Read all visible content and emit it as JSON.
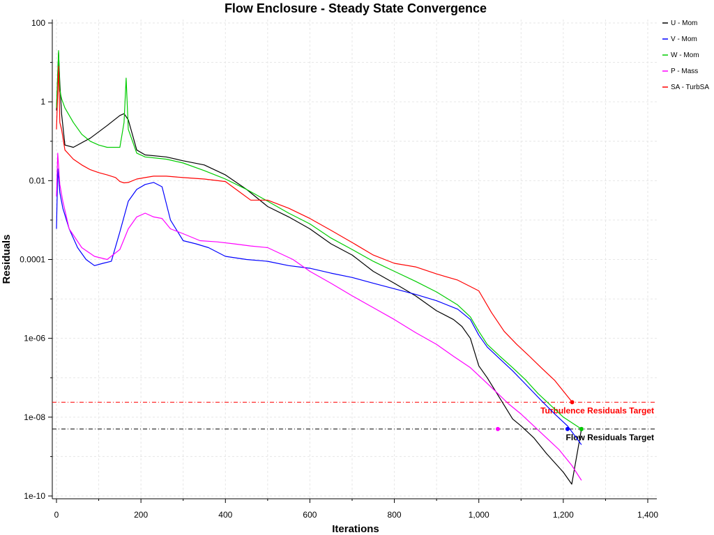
{
  "chart_data": {
    "type": "line",
    "title": "Flow Enclosure - Steady State Convergence",
    "xlabel": "Iterations",
    "ylabel": "Residuals",
    "xlim": [
      0,
      1400
    ],
    "ylim": [
      1e-10,
      100
    ],
    "y_scale": "log",
    "grid": true,
    "legend_position": "top-right",
    "x_ticks": [
      0,
      200,
      400,
      600,
      800,
      1000,
      1200,
      1400
    ],
    "x_tick_labels": [
      "0",
      "200",
      "400",
      "600",
      "800",
      "1,000",
      "1,200",
      "1,400"
    ],
    "y_ticks": [
      100,
      1,
      0.01,
      0.0001,
      1e-06,
      1e-08,
      1e-10
    ],
    "y_tick_labels": [
      "100",
      "1",
      "0.01",
      "0.0001",
      "1e-06",
      "1e-08",
      "1e-10"
    ],
    "series": [
      {
        "name": "U - Mom",
        "color": "#000000",
        "points": [
          [
            0,
            0.6
          ],
          [
            5,
            18
          ],
          [
            8,
            3
          ],
          [
            12,
            0.5
          ],
          [
            20,
            0.08
          ],
          [
            40,
            0.07
          ],
          [
            80,
            0.12
          ],
          [
            120,
            0.25
          ],
          [
            150,
            0.45
          ],
          [
            160,
            0.5
          ],
          [
            170,
            0.35
          ],
          [
            190,
            0.06
          ],
          [
            210,
            0.045
          ],
          [
            260,
            0.04
          ],
          [
            300,
            0.032
          ],
          [
            350,
            0.025
          ],
          [
            400,
            0.014
          ],
          [
            450,
            0.006
          ],
          [
            500,
            0.0022
          ],
          [
            550,
            0.0012
          ],
          [
            600,
            0.0006
          ],
          [
            650,
            0.00025
          ],
          [
            700,
            0.00013
          ],
          [
            750,
            5e-05
          ],
          [
            800,
            2.5e-05
          ],
          [
            850,
            1.2e-05
          ],
          [
            900,
            5e-06
          ],
          [
            940,
            3e-06
          ],
          [
            960,
            2e-06
          ],
          [
            980,
            1e-06
          ],
          [
            1000,
            2e-07
          ],
          [
            1020,
            1e-07
          ],
          [
            1050,
            3e-08
          ],
          [
            1080,
            9e-09
          ],
          [
            1100,
            6e-09
          ],
          [
            1130,
            3e-09
          ],
          [
            1160,
            1.2e-09
          ],
          [
            1200,
            4e-10
          ],
          [
            1220,
            2e-10
          ],
          [
            1243,
            5e-09
          ]
        ]
      },
      {
        "name": "V - Mom",
        "color": "#0000ff",
        "points": [
          [
            0,
            0.0006
          ],
          [
            3,
            0.02
          ],
          [
            8,
            0.005
          ],
          [
            15,
            0.002
          ],
          [
            30,
            0.0006
          ],
          [
            50,
            0.0002
          ],
          [
            70,
            0.0001
          ],
          [
            90,
            7e-05
          ],
          [
            110,
            8e-05
          ],
          [
            130,
            9e-05
          ],
          [
            150,
            0.0005
          ],
          [
            170,
            0.003
          ],
          [
            190,
            0.006
          ],
          [
            210,
            0.008
          ],
          [
            230,
            0.009
          ],
          [
            250,
            0.007
          ],
          [
            270,
            0.001
          ],
          [
            300,
            0.0003
          ],
          [
            330,
            0.00025
          ],
          [
            360,
            0.0002
          ],
          [
            400,
            0.00012
          ],
          [
            450,
            0.0001
          ],
          [
            500,
            9e-05
          ],
          [
            550,
            7e-05
          ],
          [
            600,
            6e-05
          ],
          [
            650,
            4.5e-05
          ],
          [
            700,
            3.5e-05
          ],
          [
            750,
            2.5e-05
          ],
          [
            800,
            1.8e-05
          ],
          [
            850,
            1.3e-05
          ],
          [
            900,
            9e-06
          ],
          [
            950,
            5.5e-06
          ],
          [
            980,
            3e-06
          ],
          [
            1000,
            1.2e-06
          ],
          [
            1020,
            6e-07
          ],
          [
            1050,
            3e-07
          ],
          [
            1080,
            1.5e-07
          ],
          [
            1110,
            7e-08
          ],
          [
            1150,
            2.5e-08
          ],
          [
            1180,
            1.2e-08
          ],
          [
            1210,
            6e-09
          ],
          [
            1243,
            2e-09
          ]
        ]
      },
      {
        "name": "W - Mom",
        "color": "#00cc00",
        "points": [
          [
            0,
            0.7
          ],
          [
            5,
            20
          ],
          [
            8,
            2
          ],
          [
            12,
            1.2
          ],
          [
            20,
            0.7
          ],
          [
            40,
            0.3
          ],
          [
            60,
            0.15
          ],
          [
            80,
            0.1
          ],
          [
            100,
            0.08
          ],
          [
            120,
            0.07
          ],
          [
            150,
            0.07
          ],
          [
            160,
            0.3
          ],
          [
            165,
            4
          ],
          [
            170,
            0.2
          ],
          [
            190,
            0.05
          ],
          [
            210,
            0.04
          ],
          [
            260,
            0.035
          ],
          [
            300,
            0.028
          ],
          [
            350,
            0.018
          ],
          [
            400,
            0.011
          ],
          [
            450,
            0.006
          ],
          [
            500,
            0.003
          ],
          [
            550,
            0.0015
          ],
          [
            600,
            0.0008
          ],
          [
            650,
            0.00035
          ],
          [
            700,
            0.00018
          ],
          [
            750,
            9e-05
          ],
          [
            800,
            5e-05
          ],
          [
            850,
            2.8e-05
          ],
          [
            900,
            1.5e-05
          ],
          [
            950,
            7e-06
          ],
          [
            980,
            3.5e-06
          ],
          [
            1000,
            1.5e-06
          ],
          [
            1020,
            7e-07
          ],
          [
            1050,
            3.5e-07
          ],
          [
            1080,
            1.8e-07
          ],
          [
            1110,
            9e-08
          ],
          [
            1140,
            4e-08
          ],
          [
            1170,
            2e-08
          ],
          [
            1200,
            1e-08
          ],
          [
            1243,
            5e-09
          ]
        ]
      },
      {
        "name": "P - Mass",
        "color": "#ff00ff",
        "points": [
          [
            0,
            0.004
          ],
          [
            3,
            0.05
          ],
          [
            8,
            0.008
          ],
          [
            15,
            0.003
          ],
          [
            30,
            0.0006
          ],
          [
            60,
            0.0002
          ],
          [
            90,
            0.00012
          ],
          [
            120,
            0.0001
          ],
          [
            150,
            0.00018
          ],
          [
            170,
            0.0006
          ],
          [
            190,
            0.0012
          ],
          [
            210,
            0.0015
          ],
          [
            230,
            0.0012
          ],
          [
            250,
            0.0011
          ],
          [
            270,
            0.0006
          ],
          [
            300,
            0.00045
          ],
          [
            340,
            0.0003
          ],
          [
            380,
            0.00028
          ],
          [
            420,
            0.00025
          ],
          [
            460,
            0.00022
          ],
          [
            500,
            0.0002
          ],
          [
            560,
            0.0001
          ],
          [
            600,
            5e-05
          ],
          [
            650,
            2.5e-05
          ],
          [
            700,
            1.2e-05
          ],
          [
            750,
            6e-06
          ],
          [
            800,
            3e-06
          ],
          [
            850,
            1.4e-06
          ],
          [
            900,
            7e-07
          ],
          [
            940,
            3.5e-07
          ],
          [
            980,
            1.8e-07
          ],
          [
            1010,
            9e-08
          ],
          [
            1040,
            4.5e-08
          ],
          [
            1070,
            2.2e-08
          ],
          [
            1100,
            1.2e-08
          ],
          [
            1130,
            6e-09
          ],
          [
            1160,
            3e-09
          ],
          [
            1190,
            1.5e-09
          ],
          [
            1220,
            6e-10
          ],
          [
            1243,
            2.5e-10
          ]
        ]
      },
      {
        "name": "SA - TurbSA",
        "color": "#ff0000",
        "points": [
          [
            0,
            0.2
          ],
          [
            5,
            8
          ],
          [
            8,
            0.3
          ],
          [
            12,
            0.2
          ],
          [
            20,
            0.06
          ],
          [
            40,
            0.035
          ],
          [
            60,
            0.025
          ],
          [
            80,
            0.019
          ],
          [
            100,
            0.016
          ],
          [
            120,
            0.014
          ],
          [
            140,
            0.012
          ],
          [
            150,
            0.0095
          ],
          [
            160,
            0.0088
          ],
          [
            170,
            0.009
          ],
          [
            190,
            0.011
          ],
          [
            210,
            0.012
          ],
          [
            230,
            0.013
          ],
          [
            260,
            0.013
          ],
          [
            300,
            0.012
          ],
          [
            350,
            0.011
          ],
          [
            400,
            0.0095
          ],
          [
            430,
            0.0055
          ],
          [
            460,
            0.0032
          ],
          [
            500,
            0.0032
          ],
          [
            550,
            0.002
          ],
          [
            600,
            0.0011
          ],
          [
            650,
            0.00055
          ],
          [
            700,
            0.00027
          ],
          [
            750,
            0.00013
          ],
          [
            800,
            8e-05
          ],
          [
            850,
            6.5e-05
          ],
          [
            900,
            4.3e-05
          ],
          [
            950,
            3e-05
          ],
          [
            1000,
            1.6e-05
          ],
          [
            1030,
            4.5e-06
          ],
          [
            1060,
            1.5e-06
          ],
          [
            1090,
            7e-07
          ],
          [
            1120,
            3.5e-07
          ],
          [
            1150,
            1.7e-07
          ],
          [
            1180,
            8.5e-08
          ],
          [
            1221,
            2.4e-08
          ]
        ]
      }
    ],
    "target_lines": [
      {
        "label": "Turbulence Residuals Target",
        "value": 2.4e-08,
        "color": "#ff0000",
        "style": "dash-dot",
        "marker_x": 1221
      },
      {
        "label": "Flow Residuals Target",
        "value": 5e-09,
        "color": "#000000",
        "style": "dash-dot",
        "marker_x": 1243
      }
    ],
    "target_markers": [
      {
        "x": 1221,
        "y": 2.4e-08,
        "color": "#ff0000"
      },
      {
        "x": 1243,
        "y": 5e-09,
        "color": "#000000"
      },
      {
        "x": 1210,
        "y": 5e-09,
        "color": "#0000ff"
      },
      {
        "x": 1243,
        "y": 5e-09,
        "color": "#00cc00"
      },
      {
        "x": 1045,
        "y": 5e-09,
        "color": "#ff00ff"
      }
    ]
  }
}
